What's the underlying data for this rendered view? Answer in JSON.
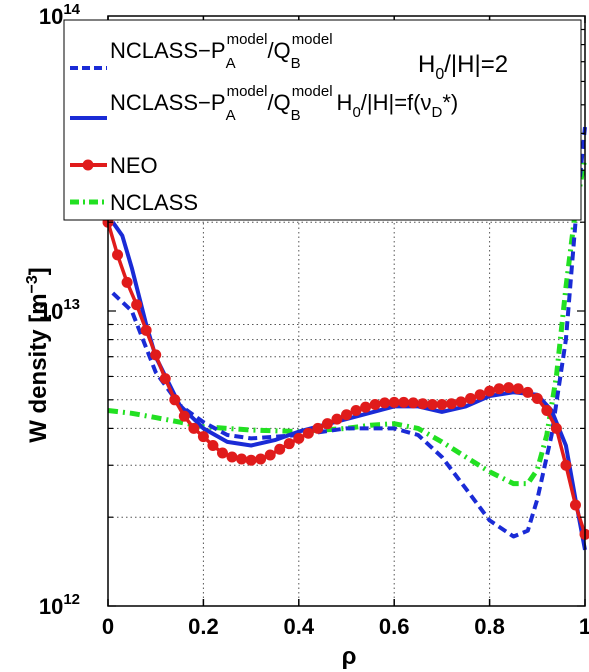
{
  "chart_data": {
    "type": "line",
    "xlabel": "ρ",
    "ylabel": "W density [m",
    "ylabel_unit_exp": "−3",
    "ylabel_close": "]",
    "xlim": [
      0,
      1
    ],
    "ylim": [
      1000000000000.0,
      100000000000000.0
    ],
    "yscale": "log",
    "grid": true,
    "legend_position": "top-left",
    "x_ticks": [
      "0",
      "0.2",
      "0.4",
      "0.6",
      "0.8",
      "1"
    ],
    "x_tick_values": [
      0,
      0.2,
      0.4,
      0.6,
      0.8,
      1
    ],
    "y_ticks": [
      {
        "base": "10",
        "exp": "12",
        "value": 1000000000000.0
      },
      {
        "base": "10",
        "exp": "13",
        "value": 10000000000000.0
      },
      {
        "base": "10",
        "exp": "14",
        "value": 100000000000000.0
      }
    ],
    "annotations": [
      "H",
      "0",
      "/|H|=2"
    ],
    "series": [
      {
        "name_parts": [
          "NCLASS−P",
          "A",
          "model",
          "/Q",
          "B",
          "model"
        ],
        "style": "dashed",
        "color": "#1a2bd6",
        "x": [
          0.01,
          0.05,
          0.1,
          0.15,
          0.2,
          0.25,
          0.3,
          0.4,
          0.5,
          0.6,
          0.65,
          0.7,
          0.75,
          0.8,
          0.85,
          0.88,
          0.9,
          0.93,
          0.96,
          0.98,
          1.0
        ],
        "y": [
          11500000000000.0,
          10000000000000.0,
          6200000000000.0,
          4800000000000.0,
          4200000000000.0,
          3800000000000.0,
          3700000000000.0,
          3800000000000.0,
          4000000000000.0,
          4000000000000.0,
          3800000000000.0,
          3200000000000.0,
          2500000000000.0,
          1950000000000.0,
          1720000000000.0,
          1800000000000.0,
          2300000000000.0,
          3800000000000.0,
          8000000000000.0,
          20000000000000.0,
          42000000000000.0
        ]
      },
      {
        "name_parts": [
          "NCLASS−P",
          "A",
          "model",
          "/Q",
          "B",
          "model"
        ],
        "name_suffix_parts": [
          "H",
          "0",
          "/|H|=f(ν",
          "D",
          "*)"
        ],
        "style": "solid",
        "color": "#1a2bd6",
        "x": [
          0.01,
          0.03,
          0.05,
          0.08,
          0.1,
          0.15,
          0.2,
          0.25,
          0.3,
          0.35,
          0.4,
          0.5,
          0.6,
          0.65,
          0.7,
          0.75,
          0.8,
          0.85,
          0.9,
          0.93,
          0.96,
          0.98,
          1.0
        ],
        "y": [
          20000000000000.0,
          18000000000000.0,
          14000000000000.0,
          9000000000000.0,
          7000000000000.0,
          4800000000000.0,
          4000000000000.0,
          3600000000000.0,
          3500000000000.0,
          3650000000000.0,
          3900000000000.0,
          4300000000000.0,
          4750000000000.0,
          4750000000000.0,
          4550000000000.0,
          4750000000000.0,
          5150000000000.0,
          5300000000000.0,
          5200000000000.0,
          4600000000000.0,
          3500000000000.0,
          2300000000000.0,
          1550000000000.0
        ]
      },
      {
        "name": "NEO",
        "style": "solid-markers",
        "color": "#e01b1b",
        "x": [
          0.0,
          0.02,
          0.04,
          0.06,
          0.08,
          0.1,
          0.12,
          0.14,
          0.16,
          0.18,
          0.2,
          0.22,
          0.24,
          0.26,
          0.28,
          0.3,
          0.32,
          0.34,
          0.36,
          0.38,
          0.4,
          0.42,
          0.44,
          0.46,
          0.48,
          0.5,
          0.52,
          0.54,
          0.56,
          0.58,
          0.6,
          0.62,
          0.64,
          0.66,
          0.68,
          0.7,
          0.72,
          0.74,
          0.76,
          0.78,
          0.8,
          0.82,
          0.84,
          0.86,
          0.88,
          0.9,
          0.92,
          0.94,
          0.96,
          0.98,
          1.0
        ],
        "y": [
          20000000000000.0,
          15500000000000.0,
          12500000000000.0,
          10500000000000.0,
          8600000000000.0,
          7100000000000.0,
          5900000000000.0,
          5000000000000.0,
          4400000000000.0,
          4000000000000.0,
          3750000000000.0,
          3500000000000.0,
          3300000000000.0,
          3200000000000.0,
          3150000000000.0,
          3120000000000.0,
          3150000000000.0,
          3250000000000.0,
          3400000000000.0,
          3550000000000.0,
          3700000000000.0,
          3850000000000.0,
          4000000000000.0,
          4150000000000.0,
          4300000000000.0,
          4450000000000.0,
          4600000000000.0,
          4720000000000.0,
          4820000000000.0,
          4880000000000.0,
          4900000000000.0,
          4900000000000.0,
          4880000000000.0,
          4850000000000.0,
          4820000000000.0,
          4820000000000.0,
          4850000000000.0,
          4920000000000.0,
          5050000000000.0,
          5200000000000.0,
          5350000000000.0,
          5450000000000.0,
          5500000000000.0,
          5450000000000.0,
          5300000000000.0,
          5050000000000.0,
          4600000000000.0,
          4000000000000.0,
          3000000000000.0,
          2200000000000.0,
          1750000000000.0
        ]
      },
      {
        "name": "NCLASS",
        "style": "dashdot",
        "color": "#22e022",
        "x": [
          0.0,
          0.05,
          0.1,
          0.15,
          0.2,
          0.3,
          0.4,
          0.5,
          0.55,
          0.6,
          0.65,
          0.7,
          0.75,
          0.8,
          0.85,
          0.88,
          0.9,
          0.92,
          0.94,
          0.96,
          0.98,
          1.0
        ],
        "y": [
          4600000000000.0,
          4500000000000.0,
          4350000000000.0,
          4200000000000.0,
          4050000000000.0,
          3950000000000.0,
          3900000000000.0,
          4000000000000.0,
          4100000000000.0,
          4150000000000.0,
          4000000000000.0,
          3600000000000.0,
          3200000000000.0,
          2850000000000.0,
          2600000000000.0,
          2600000000000.0,
          2900000000000.0,
          3800000000000.0,
          6000000000000.0,
          12000000000000.0,
          22000000000000.0,
          33000000000000.0
        ]
      }
    ]
  }
}
